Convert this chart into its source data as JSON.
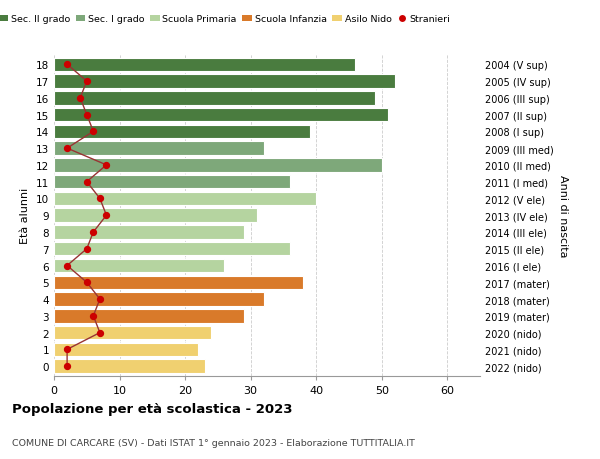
{
  "ages": [
    18,
    17,
    16,
    15,
    14,
    13,
    12,
    11,
    10,
    9,
    8,
    7,
    6,
    5,
    4,
    3,
    2,
    1,
    0
  ],
  "right_labels": [
    "2004 (V sup)",
    "2005 (IV sup)",
    "2006 (III sup)",
    "2007 (II sup)",
    "2008 (I sup)",
    "2009 (III med)",
    "2010 (II med)",
    "2011 (I med)",
    "2012 (V ele)",
    "2013 (IV ele)",
    "2014 (III ele)",
    "2015 (II ele)",
    "2016 (I ele)",
    "2017 (mater)",
    "2018 (mater)",
    "2019 (mater)",
    "2020 (nido)",
    "2021 (nido)",
    "2022 (nido)"
  ],
  "bar_values": [
    46,
    52,
    49,
    51,
    39,
    32,
    50,
    36,
    40,
    31,
    29,
    36,
    26,
    38,
    32,
    29,
    24,
    22,
    23
  ],
  "bar_colors": [
    "#4a7c3f",
    "#4a7c3f",
    "#4a7c3f",
    "#4a7c3f",
    "#4a7c3f",
    "#7ea87a",
    "#7ea87a",
    "#7ea87a",
    "#b5d4a0",
    "#b5d4a0",
    "#b5d4a0",
    "#b5d4a0",
    "#b5d4a0",
    "#d97a2a",
    "#d97a2a",
    "#d97a2a",
    "#f0d070",
    "#f0d070",
    "#f0d070"
  ],
  "stranieri_values": [
    2,
    5,
    4,
    5,
    6,
    2,
    8,
    5,
    7,
    8,
    6,
    5,
    2,
    5,
    7,
    6,
    7,
    2,
    2
  ],
  "title": "Popolazione per età scolastica - 2023",
  "subtitle": "COMUNE DI CARCARE (SV) - Dati ISTAT 1° gennaio 2023 - Elaborazione TUTTITALIA.IT",
  "ylabel": "Età alunni",
  "right_ylabel": "Anni di nascita",
  "xlabel_ticks": [
    0,
    10,
    20,
    30,
    40,
    50,
    60
  ],
  "legend_labels": [
    "Sec. II grado",
    "Sec. I grado",
    "Scuola Primaria",
    "Scuola Infanzia",
    "Asilo Nido",
    "Stranieri"
  ],
  "legend_colors": [
    "#4a7c3f",
    "#7ea87a",
    "#b5d4a0",
    "#d97a2a",
    "#f0d070",
    "#cc0000"
  ],
  "bar_height": 0.8,
  "grid_color": "#cccccc",
  "stranieri_color": "#cc0000",
  "stranieri_line_color": "#993333"
}
